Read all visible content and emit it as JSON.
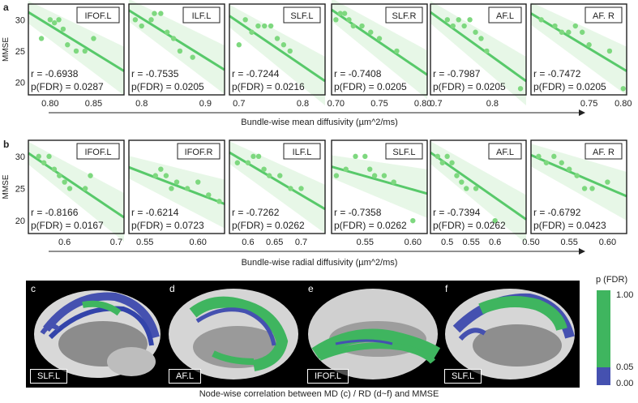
{
  "rows": [
    {
      "letter": "a",
      "ylabel": "MMSE",
      "xlabel": "Bundle-wise mean diffusivity (µm^2/ms)",
      "yticks": [
        20,
        25,
        30
      ],
      "ylim": [
        18,
        32.5
      ],
      "panels": [
        {
          "title": "IFOF.L",
          "r": "r = -0.6938",
          "p": "p(FDR) = 0.0287",
          "xlim": [
            0.775,
            0.885
          ],
          "xticks": [
            0.8,
            0.85
          ],
          "xtick_labels": [
            "0.80",
            "0.85"
          ],
          "points": [
            [
              0.8,
              30
            ],
            [
              0.805,
              29.5
            ],
            [
              0.81,
              30
            ],
            [
              0.815,
              28.5
            ],
            [
              0.82,
              26
            ],
            [
              0.83,
              25
            ],
            [
              0.84,
              25
            ],
            [
              0.85,
              27
            ],
            [
              0.79,
              27
            ]
          ],
          "fit": [
            [
              0.775,
              31.2
            ],
            [
              0.885,
              21.8
            ]
          ]
        },
        {
          "title": "ILF.L",
          "r": "r = -0.7535",
          "p": "p(FDR) = 0.0205",
          "xlim": [
            0.78,
            0.93
          ],
          "xticks": [
            0.8,
            0.9
          ],
          "xtick_labels": [
            "0.8",
            "0.9"
          ],
          "points": [
            [
              0.79,
              30
            ],
            [
              0.8,
              29
            ],
            [
              0.815,
              30
            ],
            [
              0.82,
              31
            ],
            [
              0.83,
              31
            ],
            [
              0.84,
              28
            ],
            [
              0.85,
              27
            ],
            [
              0.86,
              25
            ],
            [
              0.88,
              24
            ]
          ],
          "fit": [
            [
              0.78,
              31.5
            ],
            [
              0.93,
              22
            ]
          ]
        },
        {
          "title": "SLF.L",
          "r": "r = -0.7244",
          "p": "p(FDR) = 0.0216",
          "xlim": [
            0.685,
            0.835
          ],
          "xticks": [
            0.7,
            0.8
          ],
          "xtick_labels": [
            "0.7",
            "0.8"
          ],
          "points": [
            [
              0.7,
              26
            ],
            [
              0.71,
              30
            ],
            [
              0.72,
              28
            ],
            [
              0.73,
              29
            ],
            [
              0.74,
              29
            ],
            [
              0.75,
              29
            ],
            [
              0.76,
              27
            ],
            [
              0.77,
              26
            ],
            [
              0.78,
              25
            ]
          ],
          "fit": [
            [
              0.685,
              30.6
            ],
            [
              0.835,
              20.2
            ]
          ]
        },
        {
          "title": "SLF.R",
          "r": "r = -0.7408",
          "p": "p(FDR) = 0.0205",
          "xlim": [
            0.695,
            0.805
          ],
          "xticks": [
            0.7,
            0.75,
            0.8
          ],
          "xtick_labels": [
            "0.70",
            "0.75",
            "0.80"
          ],
          "points": [
            [
              0.7,
              30
            ],
            [
              0.705,
              31
            ],
            [
              0.71,
              31
            ],
            [
              0.715,
              30
            ],
            [
              0.72,
              29
            ],
            [
              0.73,
              29
            ],
            [
              0.74,
              28
            ],
            [
              0.75,
              27
            ],
            [
              0.77,
              25
            ]
          ],
          "fit": [
            [
              0.695,
              31.6
            ],
            [
              0.805,
              21.2
            ]
          ]
        },
        {
          "title": "AF.L",
          "r": "r = -0.7987",
          "p": "p(FDR) = 0.0205",
          "xlim": [
            0.69,
            0.86
          ],
          "xticks": [
            0.7,
            0.8
          ],
          "xtick_labels": [
            "0.7",
            "0.8"
          ],
          "points": [
            [
              0.72,
              30
            ],
            [
              0.73,
              29
            ],
            [
              0.74,
              30
            ],
            [
              0.75,
              29
            ],
            [
              0.76,
              30
            ],
            [
              0.77,
              28
            ],
            [
              0.78,
              27
            ],
            [
              0.79,
              25
            ],
            [
              0.85,
              19
            ]
          ],
          "fit": [
            [
              0.69,
              31.2
            ],
            [
              0.86,
              20.2
            ]
          ]
        },
        {
          "title": "AF. R",
          "r": "r = -0.7472",
          "p": "p(FDR) = 0.0205",
          "xlim": [
            0.665,
            0.805
          ],
          "xticks": [
            0.75,
            0.8
          ],
          "xtick_labels": [
            "0.75",
            "0.80"
          ],
          "points": [
            [
              0.68,
              30
            ],
            [
              0.7,
              29
            ],
            [
              0.71,
              28
            ],
            [
              0.72,
              28
            ],
            [
              0.73,
              29
            ],
            [
              0.74,
              28
            ],
            [
              0.75,
              26
            ],
            [
              0.78,
              25
            ],
            [
              0.8,
              19
            ]
          ],
          "fit": [
            [
              0.665,
              31
            ],
            [
              0.805,
              21.8
            ]
          ]
        }
      ]
    },
    {
      "letter": "b",
      "ylabel": "MMSE",
      "xlabel": "Bundle-wise radial diffusivity (µm^2/ms)",
      "yticks": [
        20,
        25,
        30
      ],
      "ylim": [
        18,
        32.5
      ],
      "panels": [
        {
          "title": "IFOF.L",
          "r": "r = -0.8166",
          "p": "p(FDR) = 0.0167",
          "xlim": [
            0.53,
            0.715
          ],
          "xticks": [
            0.6,
            0.7
          ],
          "xtick_labels": [
            "0.6",
            "0.7"
          ],
          "points": [
            [
              0.55,
              30
            ],
            [
              0.56,
              29
            ],
            [
              0.57,
              30
            ],
            [
              0.58,
              28
            ],
            [
              0.59,
              27
            ],
            [
              0.6,
              26
            ],
            [
              0.61,
              25
            ],
            [
              0.64,
              25
            ],
            [
              0.65,
              27
            ]
          ],
          "fit": [
            [
              0.53,
              30.5
            ],
            [
              0.715,
              20.5
            ]
          ]
        },
        {
          "title": "IFOF.R",
          "r": "r = -0.6214",
          "p": "p(FDR) = 0.0723",
          "xlim": [
            0.535,
            0.625
          ],
          "xticks": [
            0.55,
            0.6
          ],
          "xtick_labels": [
            "0.55",
            "0.60"
          ],
          "points": [
            [
              0.56,
              27
            ],
            [
              0.565,
              28
            ],
            [
              0.57,
              27
            ],
            [
              0.575,
              25
            ],
            [
              0.58,
              26
            ],
            [
              0.59,
              25
            ],
            [
              0.6,
              26
            ],
            [
              0.61,
              24
            ],
            [
              0.62,
              23
            ]
          ],
          "fit": [
            [
              0.535,
              28.3
            ],
            [
              0.625,
              22.6
            ]
          ]
        },
        {
          "title": "ILF.L",
          "r": "r = -0.7262",
          "p": "p(FDR) = 0.0262",
          "xlim": [
            0.565,
            0.745
          ],
          "xticks": [
            0.6,
            0.65,
            0.7
          ],
          "xtick_labels": [
            "0.6",
            "0.65",
            "0.7"
          ],
          "points": [
            [
              0.58,
              29
            ],
            [
              0.6,
              29
            ],
            [
              0.61,
              30
            ],
            [
              0.62,
              30
            ],
            [
              0.63,
              28
            ],
            [
              0.64,
              27
            ],
            [
              0.66,
              27
            ],
            [
              0.68,
              25
            ],
            [
              0.7,
              25
            ]
          ],
          "fit": [
            [
              0.565,
              30.6
            ],
            [
              0.745,
              21.8
            ]
          ]
        },
        {
          "title": "SLF.L",
          "r": "r = -0.7358",
          "p": "p(FDR) = 0.0262",
          "xlim": [
            0.515,
            0.615
          ],
          "xticks": [
            0.55,
            0.6
          ],
          "xtick_labels": [
            "0.55",
            "0.60"
          ],
          "points": [
            [
              0.52,
              27
            ],
            [
              0.53,
              28
            ],
            [
              0.54,
              30
            ],
            [
              0.55,
              30
            ],
            [
              0.555,
              28
            ],
            [
              0.56,
              27
            ],
            [
              0.57,
              27
            ],
            [
              0.58,
              26
            ],
            [
              0.6,
              20
            ]
          ],
          "fit": [
            [
              0.515,
              28.4
            ],
            [
              0.615,
              24.2
            ]
          ]
        },
        {
          "title": "AF.L",
          "r": "r = -0.7394",
          "p": "p(FDR) = 0.0262",
          "xlim": [
            0.465,
            0.665
          ],
          "xticks": [
            0.5,
            0.55,
            0.6
          ],
          "xtick_labels": [
            "0.5",
            "0.55",
            "0.6"
          ],
          "points": [
            [
              0.48,
              30
            ],
            [
              0.49,
              29
            ],
            [
              0.5,
              30
            ],
            [
              0.51,
              29
            ],
            [
              0.52,
              27
            ],
            [
              0.53,
              26
            ],
            [
              0.54,
              25
            ],
            [
              0.56,
              25
            ],
            [
              0.6,
              20
            ]
          ],
          "fit": [
            [
              0.465,
              30.6
            ],
            [
              0.665,
              20.2
            ]
          ]
        },
        {
          "title": "AF. R",
          "r": "r = -0.6792",
          "p": "p(FDR) = 0.0423",
          "xlim": [
            0.5,
            0.625
          ],
          "xticks": [
            0.5,
            0.55,
            0.6
          ],
          "xtick_labels": [
            "0.50",
            "0.55",
            "0.60"
          ],
          "points": [
            [
              0.51,
              30
            ],
            [
              0.52,
              29
            ],
            [
              0.53,
              30
            ],
            [
              0.54,
              29
            ],
            [
              0.55,
              28
            ],
            [
              0.56,
              27
            ],
            [
              0.57,
              25
            ],
            [
              0.58,
              25
            ],
            [
              0.6,
              26
            ]
          ],
          "fit": [
            [
              0.5,
              30.2
            ],
            [
              0.625,
              23.8
            ]
          ]
        }
      ]
    }
  ],
  "brains": [
    {
      "letter": "c",
      "label": "SLF.L"
    },
    {
      "letter": "d",
      "label": "AF.L"
    },
    {
      "letter": "e",
      "label": "IFOF.L"
    },
    {
      "letter": "f",
      "label": "SLF.L"
    }
  ],
  "colorbar": {
    "title": "p (FDR)",
    "ticks": [
      "1.00",
      "0.05",
      "0.00"
    ]
  },
  "caption": "Node-wise correlation between MD (c) / RD (d~f) and MMSE",
  "colors": {
    "point": "#7ed87f",
    "line": "#58c96a",
    "band": "#e3f6e3",
    "tract_green": "#3fb55f",
    "tract_blue": "#4551b0"
  }
}
